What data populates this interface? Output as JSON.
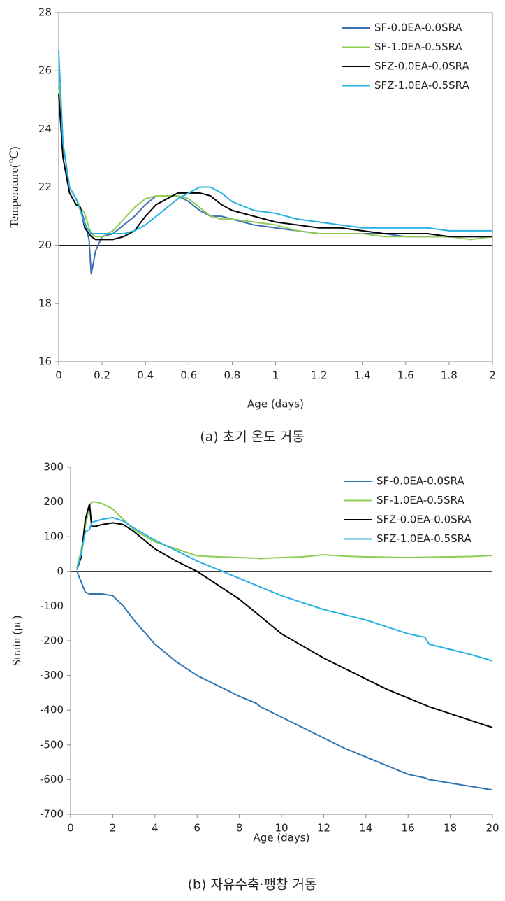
{
  "chart_data": [
    {
      "type": "line",
      "caption": "(a) 초기 온도 거동",
      "x_label": "Age (days)",
      "y_label": "Temperature(℃)",
      "x": [
        0,
        0.02,
        0.05,
        0.08,
        0.1,
        0.12,
        0.14,
        0.15,
        0.17,
        0.2,
        0.25,
        0.3,
        0.35,
        0.4,
        0.45,
        0.5,
        0.55,
        0.6,
        0.65,
        0.7,
        0.75,
        0.8,
        0.9,
        1.0,
        1.1,
        1.2,
        1.3,
        1.4,
        1.5,
        1.6,
        1.7,
        1.8,
        1.9,
        2.0
      ],
      "series": [
        {
          "name": "SF-0.0EA-0.0SRA",
          "color": "#3d6fb5",
          "values": [
            25.5,
            23.5,
            22.0,
            21.6,
            21.3,
            20.8,
            20.2,
            19.0,
            19.8,
            20.3,
            20.4,
            20.7,
            21.0,
            21.4,
            21.7,
            21.7,
            21.7,
            21.5,
            21.2,
            21.0,
            21.0,
            20.9,
            20.7,
            20.6,
            20.5,
            20.4,
            20.4,
            20.4,
            20.4,
            20.3,
            20.3,
            20.3,
            20.3,
            20.3
          ]
        },
        {
          "name": "SF-1.0EA-0.5SRA",
          "color": "#8fcc55",
          "values": [
            25.5,
            23.5,
            22.0,
            21.6,
            21.3,
            21.1,
            20.6,
            20.4,
            20.3,
            20.3,
            20.5,
            20.9,
            21.3,
            21.6,
            21.7,
            21.7,
            21.7,
            21.6,
            21.3,
            21.0,
            20.9,
            20.9,
            20.8,
            20.7,
            20.5,
            20.4,
            20.4,
            20.4,
            20.3,
            20.3,
            20.3,
            20.3,
            20.2,
            20.3
          ]
        },
        {
          "name": "SFZ-0.0EA-0.0SRA",
          "color": "#000000",
          "values": [
            25.2,
            23.0,
            21.8,
            21.4,
            21.3,
            20.6,
            20.4,
            20.3,
            20.2,
            20.2,
            20.2,
            20.3,
            20.5,
            21.0,
            21.4,
            21.6,
            21.8,
            21.8,
            21.8,
            21.7,
            21.4,
            21.2,
            21.0,
            20.8,
            20.7,
            20.6,
            20.6,
            20.5,
            20.4,
            20.4,
            20.4,
            20.3,
            20.3,
            20.3
          ]
        },
        {
          "name": "SFZ-1.0EA-0.5SRA",
          "color": "#29b1e3",
          "values": [
            26.7,
            23.5,
            22.0,
            21.6,
            21.2,
            20.7,
            20.5,
            20.4,
            20.4,
            20.4,
            20.4,
            20.4,
            20.5,
            20.7,
            21.0,
            21.3,
            21.6,
            21.8,
            22.0,
            22.0,
            21.8,
            21.5,
            21.2,
            21.1,
            20.9,
            20.8,
            20.7,
            20.6,
            20.6,
            20.6,
            20.6,
            20.5,
            20.5,
            20.5
          ]
        }
      ],
      "xlim": [
        0,
        2
      ],
      "xticks": [
        0,
        0.2,
        0.4,
        0.6,
        0.8,
        1,
        1.2,
        1.4,
        1.6,
        1.8,
        2
      ],
      "ylim": [
        16,
        28
      ],
      "yticks": [
        16,
        18,
        20,
        22,
        24,
        26,
        28
      ],
      "hline": 20,
      "box": true,
      "legend": "top-right"
    },
    {
      "type": "line",
      "caption": "(b) 자유수축·팽창 거동",
      "x_label": "Age (days)",
      "y_label": "Strain (με)",
      "x": [
        0.3,
        0.5,
        0.7,
        0.9,
        1,
        1.2,
        1.5,
        2,
        2.5,
        3,
        4,
        5,
        6,
        7,
        8,
        8.8,
        9,
        10,
        11,
        12,
        13,
        14,
        15,
        16,
        16.8,
        17,
        18,
        19,
        20
      ],
      "series": [
        {
          "name": "SF-0.0EA-0.0SRA",
          "color": "#2e75b6",
          "values": [
            0,
            -30,
            -60,
            -65,
            -65,
            -65,
            -65,
            -70,
            -100,
            -140,
            -210,
            -260,
            -300,
            -330,
            -360,
            -380,
            -390,
            -420,
            -450,
            -480,
            -510,
            -535,
            -560,
            -585,
            -595,
            -600,
            -610,
            -620,
            -630
          ]
        },
        {
          "name": "SF-1.0EA-0.5SRA",
          "color": "#8fcc55",
          "values": [
            10,
            60,
            130,
            190,
            200,
            200,
            195,
            180,
            150,
            120,
            85,
            65,
            45,
            42,
            40,
            38,
            37,
            40,
            42,
            48,
            44,
            42,
            41,
            40,
            41,
            41,
            42,
            43,
            46
          ]
        },
        {
          "name": "SFZ-0.0EA-0.0SRA",
          "color": "#000000",
          "values": [
            5,
            40,
            150,
            195,
            130,
            130,
            135,
            140,
            135,
            115,
            65,
            30,
            0,
            -40,
            -80,
            -120,
            -130,
            -180,
            -215,
            -250,
            -280,
            -310,
            -340,
            -365,
            -385,
            -390,
            -410,
            -430,
            -450
          ]
        },
        {
          "name": "SFZ-1.0EA-0.5SRA",
          "color": "#29b1e3",
          "values": [
            5,
            50,
            115,
            120,
            140,
            145,
            150,
            155,
            145,
            125,
            90,
            60,
            30,
            5,
            -20,
            -40,
            -45,
            -70,
            -90,
            -110,
            -125,
            -140,
            -160,
            -180,
            -190,
            -210,
            -225,
            -240,
            -258
          ]
        }
      ],
      "xlim": [
        0,
        20
      ],
      "xticks": [
        0,
        2,
        4,
        6,
        8,
        10,
        12,
        14,
        16,
        18,
        20
      ],
      "ylim": [
        -700,
        300
      ],
      "yticks": [
        -700,
        -600,
        -500,
        -400,
        -300,
        -200,
        -100,
        0,
        100,
        200,
        300
      ],
      "hline": 0,
      "box": false,
      "legend": "top-right"
    }
  ]
}
